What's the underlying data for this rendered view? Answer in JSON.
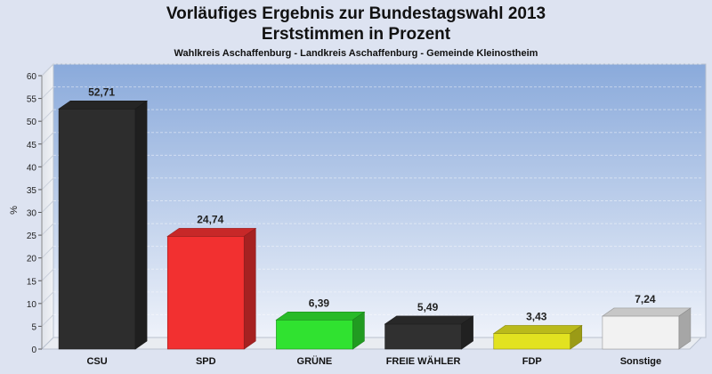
{
  "chart_data": {
    "type": "bar",
    "title": "Vorläufiges Ergebnis zur Bundestagswahl 2013",
    "title_line2": "Erststimmen in Prozent",
    "subtitle": "Wahlkreis Aschaffenburg - Landkreis Aschaffenburg - Gemeinde Kleinostheim",
    "ylabel": "%",
    "xlabel": "",
    "ylim": [
      0,
      60
    ],
    "yticks": [
      0,
      5,
      10,
      15,
      20,
      25,
      30,
      35,
      40,
      45,
      50,
      55,
      60
    ],
    "grid": true,
    "categories": [
      "CSU",
      "SPD",
      "GRÜNE",
      "FREIE WÄHLER",
      "FDP",
      "Sonstige"
    ],
    "values": [
      52.71,
      24.74,
      6.39,
      5.49,
      3.43,
      7.24
    ],
    "value_labels": [
      "52,71",
      "24,74",
      "6,39",
      "5,49",
      "3,43",
      "7,24"
    ],
    "colors": [
      "#2f2f2f",
      "#ff3333",
      "#33ee33",
      "#333333",
      "#eeee22",
      "#ffffff"
    ]
  }
}
